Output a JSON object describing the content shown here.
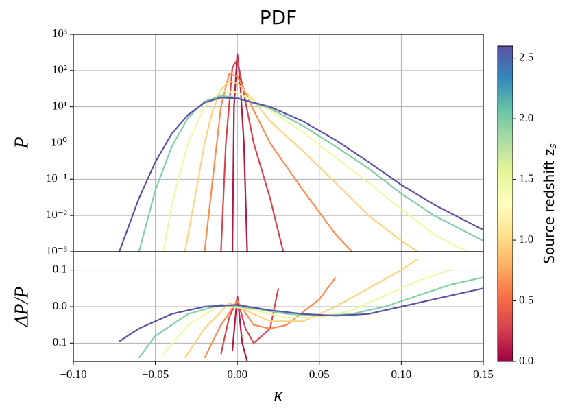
{
  "chart_data": [
    {
      "type": "line",
      "title": "PDF",
      "ylabel": "P",
      "ylog": true,
      "grid": true,
      "xlim": [
        -0.1,
        0.15
      ],
      "ylim": [
        0.001,
        1000
      ],
      "yticks": [
        {
          "value": 0.001,
          "label": "10⁻³"
        },
        {
          "value": 0.01,
          "label": "10⁻²"
        },
        {
          "value": 0.1,
          "label": "10⁻¹"
        },
        {
          "value": 1,
          "label": "10⁰"
        },
        {
          "value": 10,
          "label": "10¹"
        },
        {
          "value": 100,
          "label": "10²"
        },
        {
          "value": 1000,
          "label": "10³"
        }
      ],
      "series": [
        {
          "color": "#b01a46",
          "x": [
            -0.003,
            -0.002,
            0,
            0.002,
            0.004,
            0.006
          ],
          "values": [
            0.001,
            10,
            300,
            30,
            1,
            0.001
          ]
        },
        {
          "color": "#d8434e",
          "x": [
            -0.01,
            -0.007,
            -0.003,
            0,
            0.003,
            0.006,
            0.01,
            0.02,
            0.028
          ],
          "values": [
            0.001,
            1,
            120,
            200,
            40,
            8,
            1,
            0.03,
            0.001
          ]
        },
        {
          "color": "#f88d52",
          "x": [
            -0.02,
            -0.015,
            -0.01,
            -0.005,
            0,
            0.005,
            0.01,
            0.02,
            0.04,
            0.06,
            0.07
          ],
          "values": [
            0.001,
            0.1,
            10,
            80,
            70,
            25,
            8,
            1,
            0.05,
            0.003,
            0.001
          ]
        },
        {
          "color": "#fed27e",
          "x": [
            -0.032,
            -0.025,
            -0.02,
            -0.015,
            -0.01,
            -0.005,
            0,
            0.01,
            0.02,
            0.04,
            0.06,
            0.08,
            0.1,
            0.11
          ],
          "values": [
            0.001,
            0.05,
            1,
            8,
            30,
            50,
            45,
            15,
            4,
            0.6,
            0.08,
            0.01,
            0.002,
            0.001
          ]
        },
        {
          "color": "#f0f8a6",
          "x": [
            -0.045,
            -0.04,
            -0.03,
            -0.02,
            -0.01,
            0,
            0.02,
            0.04,
            0.06,
            0.08,
            0.1,
            0.12,
            0.14
          ],
          "values": [
            0.001,
            0.02,
            1,
            10,
            28,
            25,
            8,
            2,
            0.4,
            0.08,
            0.015,
            0.003,
            0.001
          ]
        },
        {
          "color": "#80cfa5",
          "x": [
            -0.06,
            -0.05,
            -0.04,
            -0.03,
            -0.02,
            -0.01,
            0,
            0.02,
            0.04,
            0.06,
            0.08,
            0.1,
            0.12,
            0.15
          ],
          "values": [
            0.001,
            0.05,
            0.8,
            5,
            14,
            20,
            18,
            9,
            3,
            0.8,
            0.2,
            0.04,
            0.01,
            0.002
          ]
        },
        {
          "color": "#5e4fa2",
          "x": [
            -0.072,
            -0.06,
            -0.05,
            -0.04,
            -0.03,
            -0.02,
            -0.01,
            0,
            0.02,
            0.04,
            0.06,
            0.08,
            0.1,
            0.12,
            0.15
          ],
          "values": [
            0.001,
            0.03,
            0.3,
            1.8,
            6,
            13,
            18,
            17,
            10,
            4,
            1.2,
            0.3,
            0.07,
            0.02,
            0.004
          ]
        }
      ]
    },
    {
      "type": "line",
      "ylabel": "ΔP/P",
      "xlabel": "κ",
      "grid": true,
      "xlim": [
        -0.1,
        0.15
      ],
      "ylim": [
        -0.15,
        0.15
      ],
      "xticks": [
        {
          "value": -0.1,
          "label": "−0.10"
        },
        {
          "value": -0.05,
          "label": "−0.05"
        },
        {
          "value": 0,
          "label": "0.00"
        },
        {
          "value": 0.05,
          "label": "0.05"
        },
        {
          "value": 0.1,
          "label": "0.10"
        },
        {
          "value": 0.15,
          "label": "0.15"
        }
      ],
      "yticks": [
        {
          "value": -0.1,
          "label": "−0.1"
        },
        {
          "value": 0,
          "label": "0.0"
        },
        0.1
      ],
      "series": [
        {
          "color": "#b01a46",
          "x": [
            -0.003,
            0,
            0.003,
            0.006
          ],
          "values": [
            -0.12,
            0.03,
            -0.1,
            -0.15
          ]
        },
        {
          "color": "#d8434e",
          "x": [
            -0.01,
            -0.005,
            0,
            0.005,
            0.01,
            0.02,
            0.025
          ],
          "values": [
            -0.13,
            -0.03,
            0.02,
            -0.06,
            -0.1,
            -0.06,
            0.05
          ]
        },
        {
          "color": "#f88d52",
          "x": [
            -0.02,
            -0.01,
            0,
            0.01,
            0.02,
            0.03,
            0.05,
            0.06
          ],
          "values": [
            -0.14,
            -0.05,
            0.015,
            -0.05,
            -0.06,
            -0.05,
            0.02,
            0.08
          ]
        },
        {
          "color": "#fed27e",
          "x": [
            -0.032,
            -0.02,
            -0.005,
            0.01,
            0.02,
            0.04,
            0.06,
            0.08,
            0.1,
            0.11
          ],
          "values": [
            -0.14,
            -0.06,
            0.01,
            -0.02,
            -0.04,
            -0.04,
            0,
            0.05,
            0.1,
            0.13
          ]
        },
        {
          "color": "#f0f8a6",
          "x": [
            -0.045,
            -0.03,
            -0.01,
            0.01,
            0.03,
            0.05,
            0.07,
            0.09,
            0.11,
            0.13
          ],
          "values": [
            -0.13,
            -0.05,
            0.005,
            -0.01,
            -0.03,
            -0.03,
            -0.01,
            0.03,
            0.07,
            0.1
          ]
        },
        {
          "color": "#80cfa5",
          "x": [
            -0.06,
            -0.05,
            -0.03,
            -0.01,
            0.01,
            0.03,
            0.05,
            0.07,
            0.09,
            0.11,
            0.13,
            0.15
          ],
          "values": [
            -0.14,
            -0.08,
            -0.02,
            0.005,
            -0.005,
            -0.02,
            -0.025,
            -0.02,
            0,
            0.03,
            0.06,
            0.08
          ]
        },
        {
          "color": "#5e4fa2",
          "x": [
            -0.072,
            -0.06,
            -0.04,
            -0.02,
            0,
            0.02,
            0.04,
            0.06,
            0.08,
            0.1,
            0.12,
            0.15
          ],
          "values": [
            -0.095,
            -0.06,
            -0.02,
            0,
            0.005,
            -0.01,
            -0.02,
            -0.025,
            -0.02,
            0,
            0.02,
            0.05
          ]
        }
      ]
    }
  ],
  "colorbar": {
    "label": "Source redshift z",
    "label_sub": "s",
    "clim": [
      0,
      2.6
    ],
    "ticks": [
      {
        "value": 0,
        "label": "0.0"
      },
      0.5,
      {
        "value": 1,
        "label": "1.0"
      },
      1.5,
      {
        "value": 2,
        "label": "2.0"
      },
      2.5
    ],
    "colormap": [
      "#9e0142",
      "#d53e4f",
      "#f46d43",
      "#fdae61",
      "#fee08b",
      "#ffffbf",
      "#e6f598",
      "#abdda4",
      "#66c2a5",
      "#3288bd",
      "#5e4fa2"
    ]
  }
}
